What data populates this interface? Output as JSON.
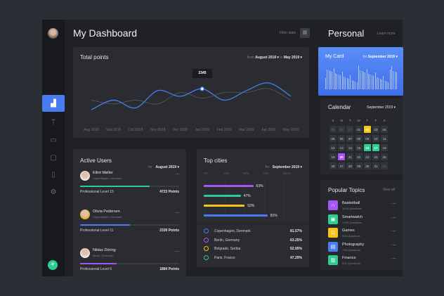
{
  "header": {
    "title": "My Dashboard",
    "filter_label": "Filter stats"
  },
  "sidebar": {
    "items": [
      "stats",
      "sign",
      "inbox",
      "chat",
      "document",
      "settings"
    ],
    "add_icon": "plus-icon"
  },
  "total_points": {
    "title": "Total points",
    "from_label": "from",
    "from_value": "August 2018 ▾",
    "to_label": "to",
    "to_value": "May 2019 ▾",
    "tooltip": "2345"
  },
  "chart_data": {
    "type": "line",
    "categories": [
      "Aug 2018",
      "Sep 2018",
      "Oct 2018",
      "Nov 2018",
      "Dec 2018",
      "Jan 2019",
      "Feb 2019",
      "Mar 2019",
      "Apr 2019",
      "May 2019"
    ],
    "series": [
      {
        "values": [
          1800,
          2050,
          1850,
          2300,
          2150,
          2345,
          2050,
          2300,
          2500,
          2150
        ],
        "color": "#4a7cf0"
      },
      {
        "values": [
          2050,
          1950,
          2050,
          1950,
          2250,
          2100,
          2250,
          2250,
          2350,
          2050
        ],
        "color": "#55585e"
      }
    ],
    "highlight": {
      "category": "Jan 2019",
      "value": 2345
    },
    "grid": false
  },
  "active_users": {
    "title": "Active Users",
    "for_label": "for",
    "period": "August 2019 ▾",
    "users": [
      {
        "name": "Elliot Møller",
        "location": "Copenhagen, Denmark",
        "level": "Professional Level 15",
        "points": "4723 Points",
        "progress": 0.7,
        "color": "#2ecc8f"
      },
      {
        "name": "Olivia Pedersen",
        "location": "Copenhagen, Denmark",
        "level": "Professional Level 11",
        "points": "2339 Points",
        "progress": 0.5,
        "color": "#4a7cf0"
      },
      {
        "name": "Niklas Döring",
        "location": "Berlin, Germany",
        "level": "Professional Level 6",
        "points": "1884 Points",
        "progress": 0.37,
        "color": "#a855f7"
      }
    ]
  },
  "top_cities": {
    "title": "Top cities",
    "for_label": "for",
    "period": "September 2019 ▾",
    "axis": [
      "0%",
      "25%",
      "50%",
      "75%",
      "100%"
    ],
    "bars": [
      {
        "label": "63%",
        "value": 63,
        "color": "#a855f7"
      },
      {
        "label": "47%",
        "value": 47,
        "color": "#2ecc8f"
      },
      {
        "label": "52%",
        "value": 52,
        "color": "#f5c518"
      },
      {
        "label": "81%",
        "value": 81,
        "color": "#4a7cf0"
      }
    ],
    "list": [
      {
        "city": "Copenhagen, Denmark",
        "pct": "81.57%",
        "color": "#4a7cf0"
      },
      {
        "city": "Berlin, Germany",
        "pct": "63.25%",
        "color": "#a855f7"
      },
      {
        "city": "Belgrade, Serbia",
        "pct": "52.95%",
        "color": "#f5c518"
      },
      {
        "city": "Paris, France",
        "pct": "47.29%",
        "color": "#2ecc8f"
      }
    ]
  },
  "personal": {
    "title": "Personal",
    "learn_more": "Learn more"
  },
  "my_card": {
    "title": "My Card",
    "for_label": "for",
    "period": "September 2019 ▾"
  },
  "calendar": {
    "title": "Calendar",
    "period": "September 2019 ▾",
    "weekdays": [
      "S",
      "M",
      "T",
      "W",
      "T",
      "F",
      "S"
    ],
    "days": [
      "25",
      "26",
      "27",
      "01",
      "02",
      "03",
      "04",
      "05",
      "06",
      "07",
      "08",
      "09",
      "10",
      "11",
      "12",
      "13",
      "14",
      "15",
      "16",
      "17",
      "18",
      "19",
      "20",
      "21",
      "22",
      "23",
      "24",
      "25",
      "26",
      "27",
      "28",
      "29",
      "30",
      "31",
      "01"
    ],
    "highlights": {
      "02": "#f5c518",
      "16": "#2ecc8f",
      "17": "#2ecc8f",
      "20": "#a855f7"
    }
  },
  "popular": {
    "title": "Popular Topics",
    "view_all": "View all",
    "topics": [
      {
        "name": "Basketball",
        "count": "1423 Questions",
        "color": "#a855f7",
        "icon": "headphones-icon"
      },
      {
        "name": "Smartwatch",
        "count": "1709 Questions",
        "color": "#2ecc8f",
        "icon": "watch-icon"
      },
      {
        "name": "Games",
        "count": "965 Questions",
        "color": "#f5c518",
        "icon": "gamepad-icon"
      },
      {
        "name": "Photography",
        "count": "798 Questions",
        "color": "#4a7cf0",
        "icon": "camera-icon"
      },
      {
        "name": "Finance",
        "count": "632 Questions",
        "color": "#2ecc8f",
        "icon": "wallet-icon"
      }
    ]
  }
}
